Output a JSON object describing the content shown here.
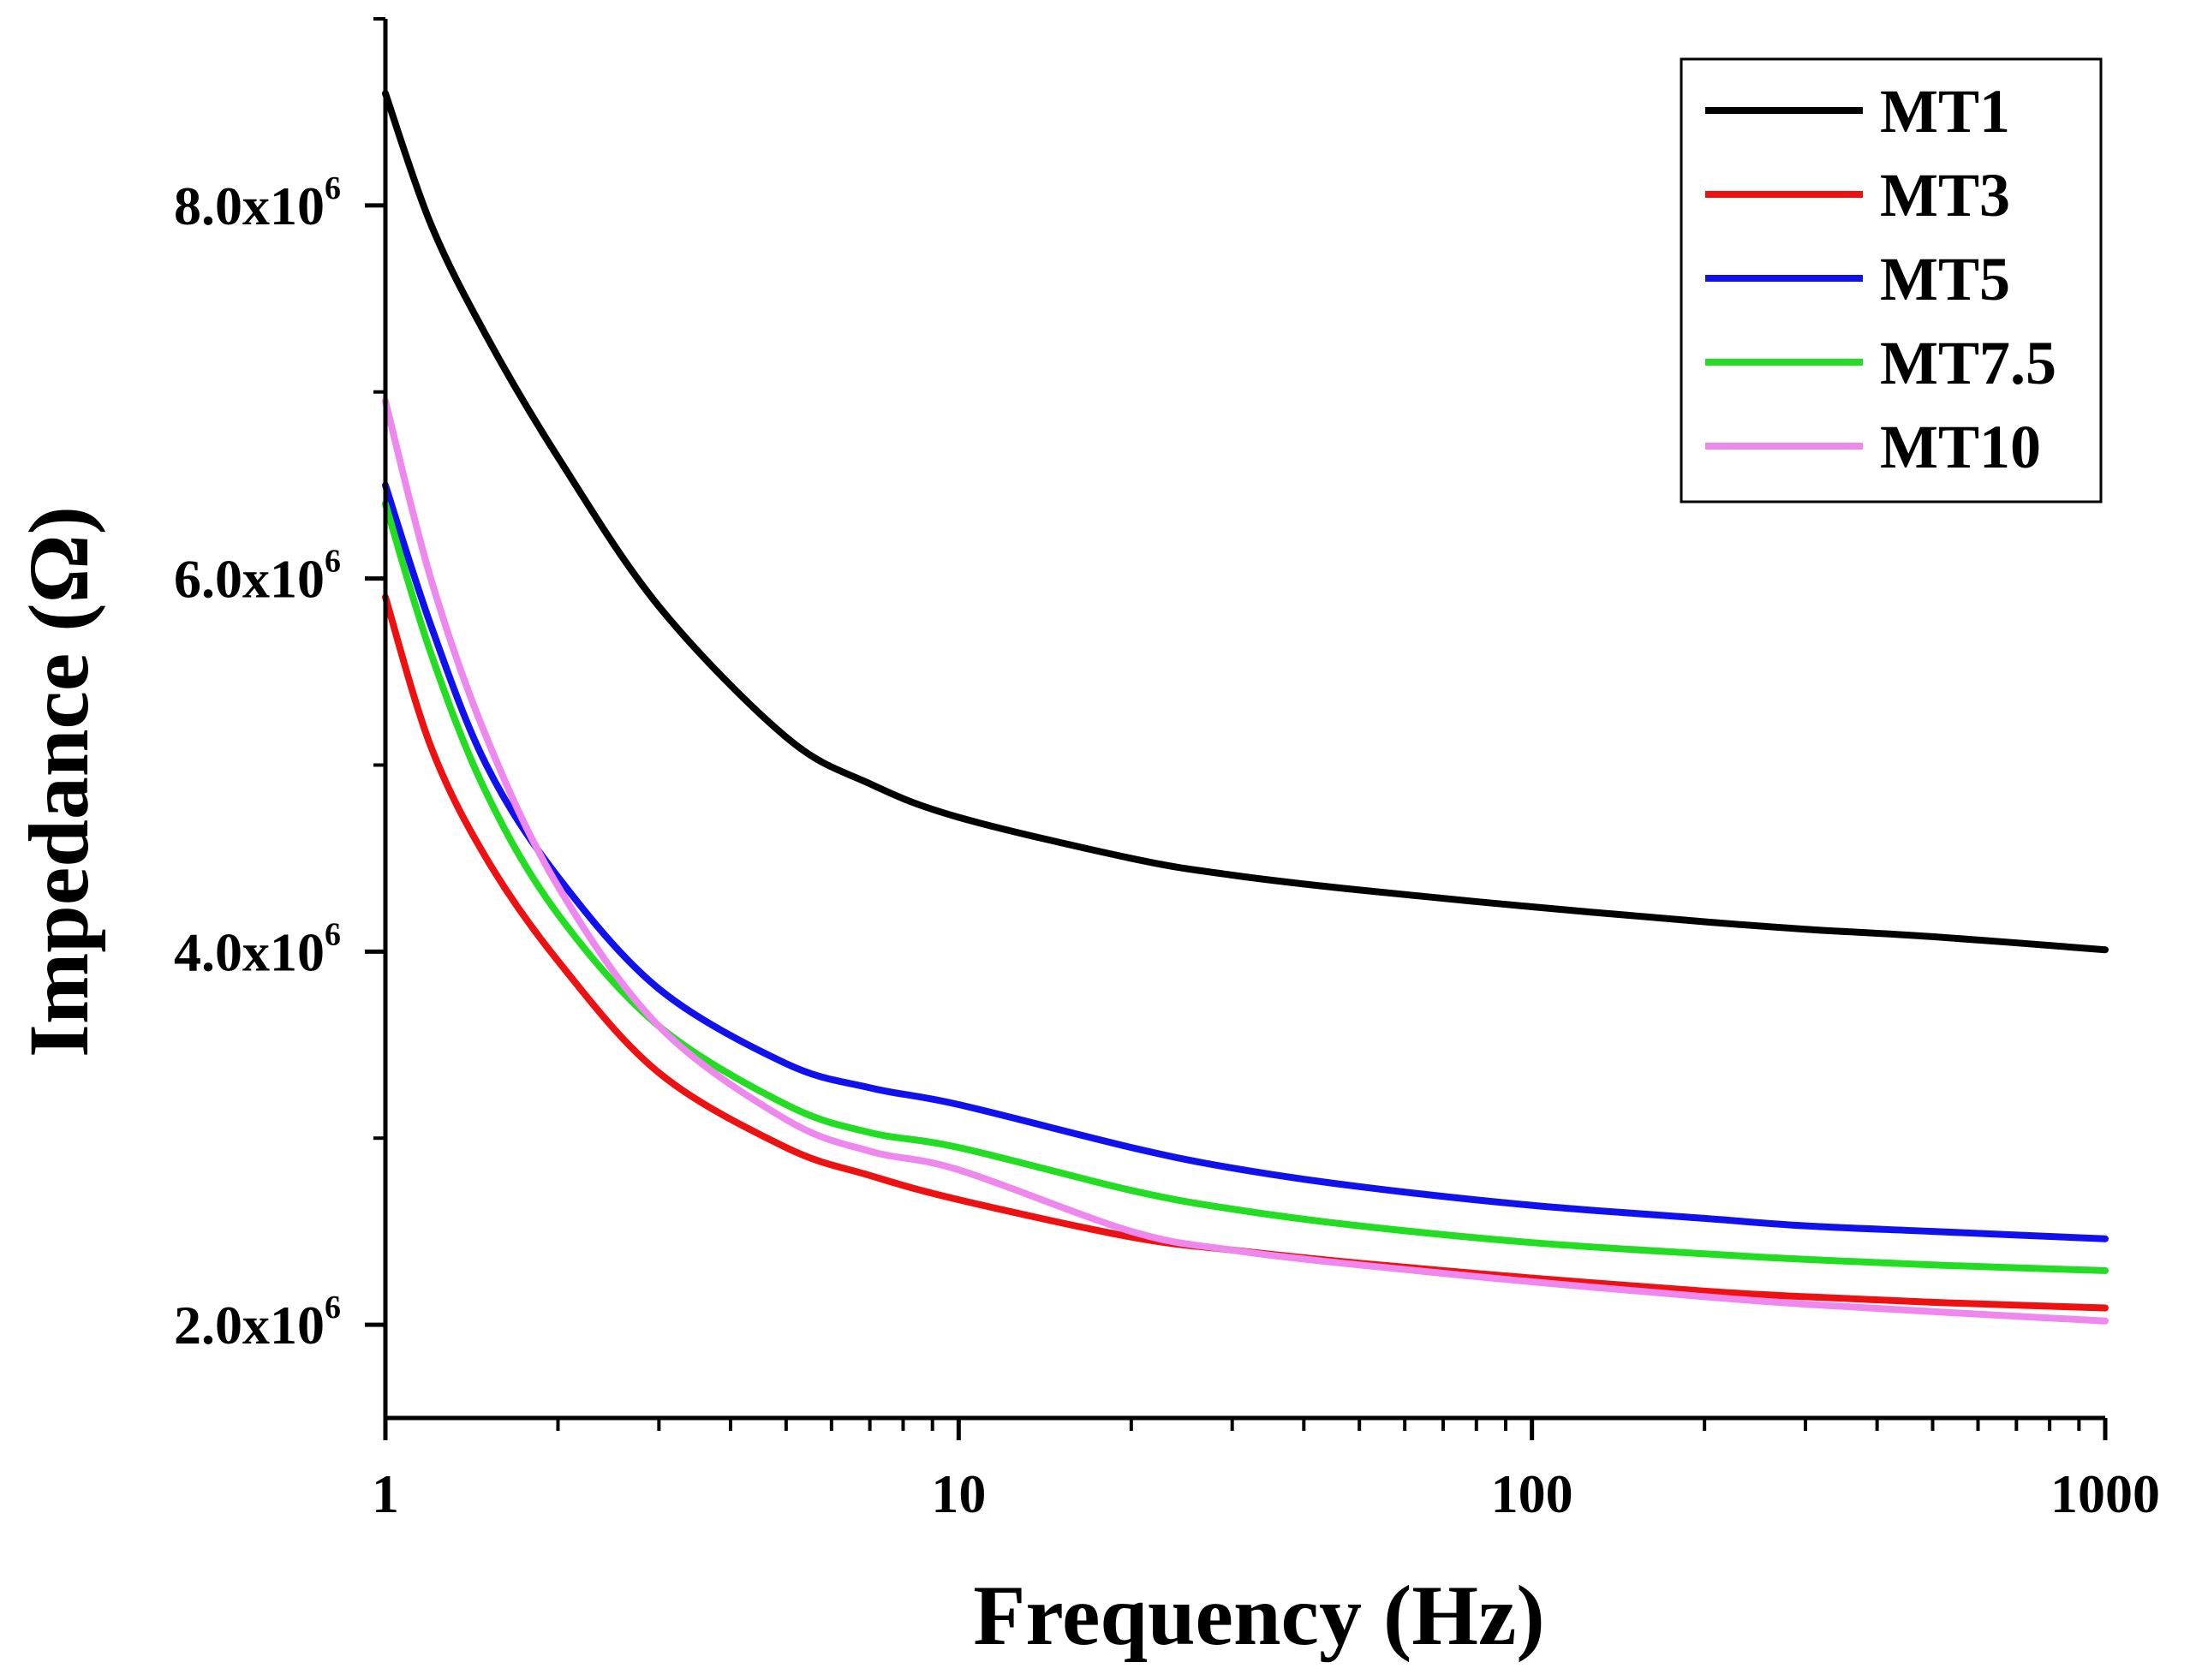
{
  "chart_data": {
    "type": "line",
    "title": "",
    "xlabel": "Frequency (Hz)",
    "ylabel": "Impedance (Ω)",
    "xscale": "log",
    "xlim": [
      1,
      1000
    ],
    "ylim": [
      1500000,
      9000000
    ],
    "x_ticks": [
      {
        "value": 1,
        "label": "1"
      },
      {
        "value": 10,
        "label": "10"
      },
      {
        "value": 100,
        "label": "100"
      },
      {
        "value": 1000,
        "label": "1000"
      }
    ],
    "y_ticks": [
      {
        "value": 2000000,
        "mantissa": "2.0x10",
        "exponent": "6"
      },
      {
        "value": 4000000,
        "mantissa": "4.0x10",
        "exponent": "6"
      },
      {
        "value": 6000000,
        "mantissa": "6.0x10",
        "exponent": "6"
      },
      {
        "value": 8000000,
        "mantissa": "8.0x10",
        "exponent": "6"
      }
    ],
    "legend_position": "top-right",
    "grid": false,
    "x": [
      1,
      1.2,
      1.5,
      2,
      3,
      5,
      7,
      10,
      20,
      30,
      50,
      100,
      200,
      300,
      500,
      1000
    ],
    "series": [
      {
        "name": "MT1",
        "color": "#000000",
        "values": [
          8600000,
          7900000,
          7300000,
          6650000,
          5850000,
          5150000,
          4900000,
          4720000,
          4500000,
          4410000,
          4330000,
          4240000,
          4160000,
          4120000,
          4080000,
          4010000
        ]
      },
      {
        "name": "MT3",
        "color": "#ee1111",
        "values": [
          5900000,
          5100000,
          4500000,
          3950000,
          3350000,
          2950000,
          2800000,
          2670000,
          2470000,
          2400000,
          2330000,
          2250000,
          2180000,
          2150000,
          2120000,
          2090000
        ]
      },
      {
        "name": "MT5",
        "color": "#1111ee",
        "values": [
          6500000,
          5750000,
          5000000,
          4400000,
          3800000,
          3400000,
          3270000,
          3180000,
          2950000,
          2840000,
          2740000,
          2640000,
          2570000,
          2530000,
          2500000,
          2460000
        ]
      },
      {
        "name": "MT7.5",
        "color": "#22dd22",
        "values": [
          6400000,
          5600000,
          4850000,
          4200000,
          3600000,
          3180000,
          3030000,
          2950000,
          2720000,
          2620000,
          2530000,
          2440000,
          2380000,
          2350000,
          2320000,
          2290000
        ]
      },
      {
        "name": "MT10",
        "color": "#ee88ee",
        "values": [
          6950000,
          6000000,
          5150000,
          4350000,
          3600000,
          3100000,
          2930000,
          2830000,
          2500000,
          2400000,
          2320000,
          2230000,
          2150000,
          2110000,
          2070000,
          2020000
        ]
      }
    ]
  }
}
